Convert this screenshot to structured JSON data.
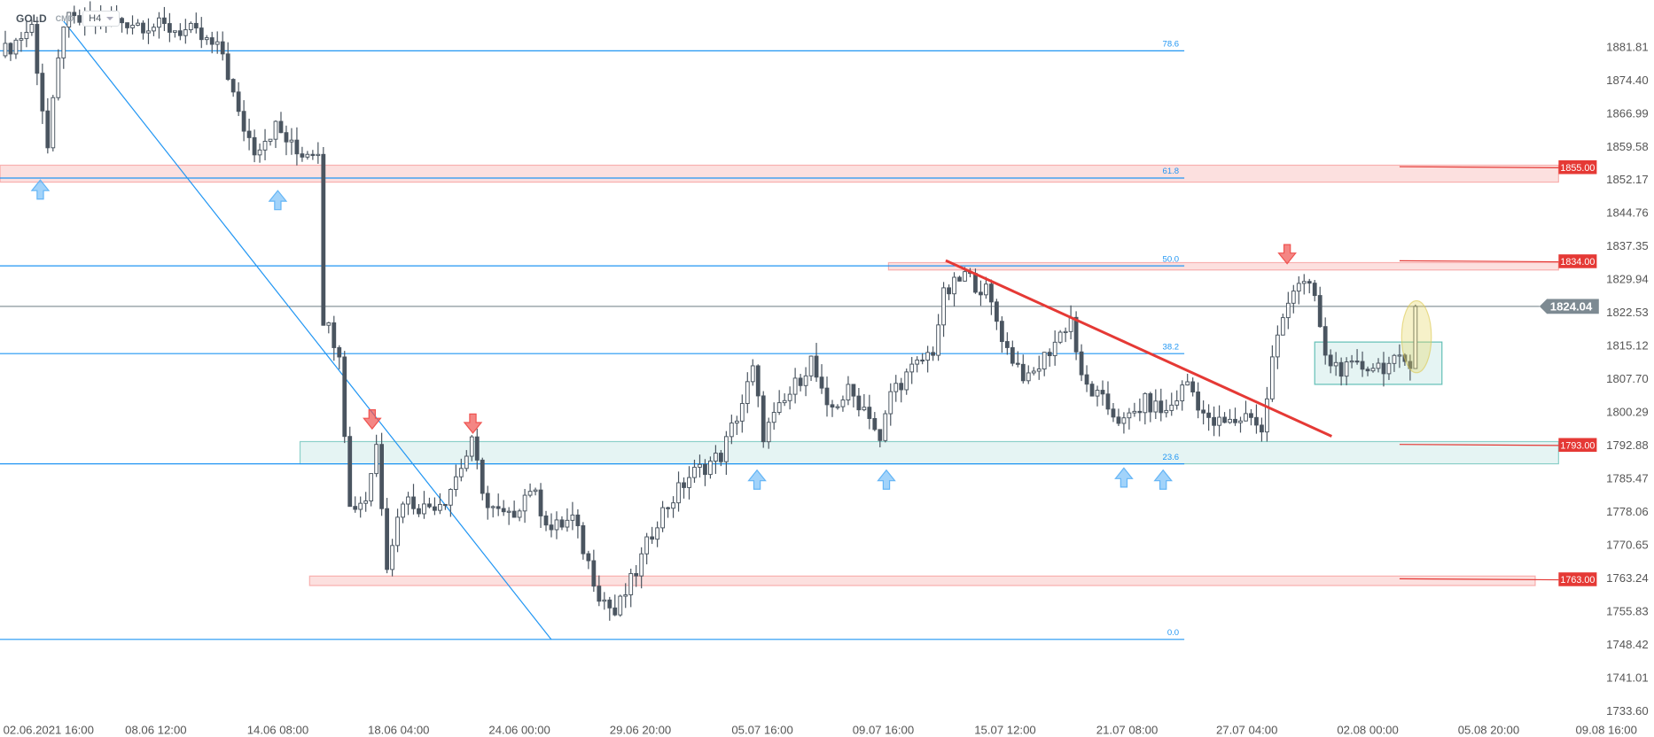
{
  "header": {
    "symbol": "GOLD",
    "category": "CMD",
    "timeframe": "H4"
  },
  "chart_data": {
    "type": "candlestick",
    "title": "GOLD H4",
    "y_axis": {
      "ticks": [
        "1881.81",
        "1874.40",
        "1866.99",
        "1859.58",
        "1852.17",
        "1844.76",
        "1837.35",
        "1829.94",
        "1822.53",
        "1815.12",
        "1807.70",
        "1800.29",
        "1792.88",
        "1785.47",
        "1778.06",
        "1770.65",
        "1763.24",
        "1755.83",
        "1748.42",
        "1741.01",
        "1733.60"
      ],
      "range": [
        1733.6,
        1889.2
      ]
    },
    "x_axis": {
      "ticks": [
        "02.06.2021  16:00",
        "08.06  12:00",
        "14.06  08:00",
        "18.06  04:00",
        "24.06  00:00",
        "29.06  20:00",
        "05.07  16:00",
        "09.07  16:00",
        "15.07  12:00",
        "21.07  08:00",
        "27.07  04:00",
        "02.08  00:00",
        "05.08  20:00",
        "09.08  16:00"
      ]
    },
    "current_price": "1824.04",
    "price_path": [
      [
        0,
        1880
      ],
      [
        6,
        1886.5
      ],
      [
        9,
        1859.3
      ],
      [
        12,
        1887.7
      ],
      [
        24,
        1887.7
      ],
      [
        36,
        1885.3
      ],
      [
        42,
        1880.6
      ],
      [
        45,
        1866.4
      ],
      [
        48,
        1859.3
      ],
      [
        52,
        1864.1
      ],
      [
        56,
        1858.2
      ],
      [
        60,
        1859.3
      ],
      [
        61,
        1821.5
      ],
      [
        64,
        1814.4
      ],
      [
        66,
        1779.0
      ],
      [
        69,
        1781.3
      ],
      [
        71,
        1793.2
      ],
      [
        73,
        1767.2
      ],
      [
        76,
        1781.3
      ],
      [
        80,
        1779.0
      ],
      [
        84,
        1781.3
      ],
      [
        89,
        1793.2
      ],
      [
        92,
        1779.0
      ],
      [
        96,
        1776.6
      ],
      [
        100,
        1783.7
      ],
      [
        104,
        1774.2
      ],
      [
        108,
        1776.6
      ],
      [
        113,
        1760.1
      ],
      [
        116,
        1755.3
      ],
      [
        120,
        1764.8
      ],
      [
        124,
        1776.6
      ],
      [
        130,
        1786.1
      ],
      [
        136,
        1790.8
      ],
      [
        140,
        1802.6
      ],
      [
        142,
        1809.7
      ],
      [
        144,
        1795.5
      ],
      [
        148,
        1802.6
      ],
      [
        153,
        1812.1
      ],
      [
        156,
        1800.3
      ],
      [
        160,
        1805.0
      ],
      [
        164,
        1800.3
      ],
      [
        166,
        1793.2
      ],
      [
        168,
        1805.0
      ],
      [
        172,
        1809.7
      ],
      [
        176,
        1814.4
      ],
      [
        178,
        1826.3
      ],
      [
        182,
        1831.0
      ],
      [
        186,
        1827.4
      ],
      [
        190,
        1814.4
      ],
      [
        194,
        1807.3
      ],
      [
        198,
        1814.4
      ],
      [
        202,
        1821.5
      ],
      [
        204,
        1807.3
      ],
      [
        208,
        1802.6
      ],
      [
        212,
        1797.9
      ],
      [
        216,
        1802.6
      ],
      [
        220,
        1800.3
      ],
      [
        224,
        1807.3
      ],
      [
        228,
        1797.9
      ],
      [
        232,
        1797.9
      ],
      [
        236,
        1800.3
      ],
      [
        238,
        1795.5
      ],
      [
        240,
        1812.1
      ],
      [
        243,
        1826.3
      ],
      [
        245,
        1829.8
      ],
      [
        248,
        1826.3
      ],
      [
        250,
        1812.1
      ],
      [
        254,
        1809.7
      ],
      [
        258,
        1810.9
      ],
      [
        262,
        1810.9
      ],
      [
        266,
        1812.1
      ],
      [
        267,
        1824.04
      ]
    ],
    "fibonacci": [
      {
        "level": "78.6",
        "price": 1881.1
      },
      {
        "level": "61.8",
        "price": 1852.7
      },
      {
        "level": "50.0",
        "price": 1833.1
      },
      {
        "level": "38.2",
        "price": 1813.5
      },
      {
        "level": "23.6",
        "price": 1788.9
      },
      {
        "level": "0.0",
        "price": 1749.7
      }
    ],
    "levels": [
      {
        "label": "1855.00",
        "price": 1855.0
      },
      {
        "label": "1834.00",
        "price": 1834.0
      },
      {
        "label": "1793.00",
        "price": 1793.0
      },
      {
        "label": "1763.00",
        "price": 1763.0
      }
    ],
    "colors": {
      "fib": "#2196f3",
      "resistance": "#e53935",
      "support_zone": "#26a69a",
      "candle": "#4a5560",
      "price_tag": "#7d8a92"
    }
  }
}
